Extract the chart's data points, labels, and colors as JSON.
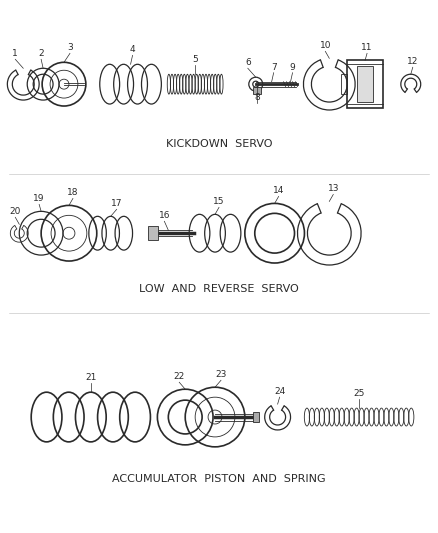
{
  "bg_color": "#ffffff",
  "line_color": "#2a2a2a",
  "section1_label": "KICKDOWN  SERVO",
  "section2_label": "LOW  AND  REVERSE  SERVO",
  "section3_label": "ACCUMULATOR  PISTON  AND  SPRING",
  "label_fontsize": 7.0,
  "number_fontsize": 6.5,
  "figsize": [
    4.38,
    5.33
  ],
  "dpi": 100
}
